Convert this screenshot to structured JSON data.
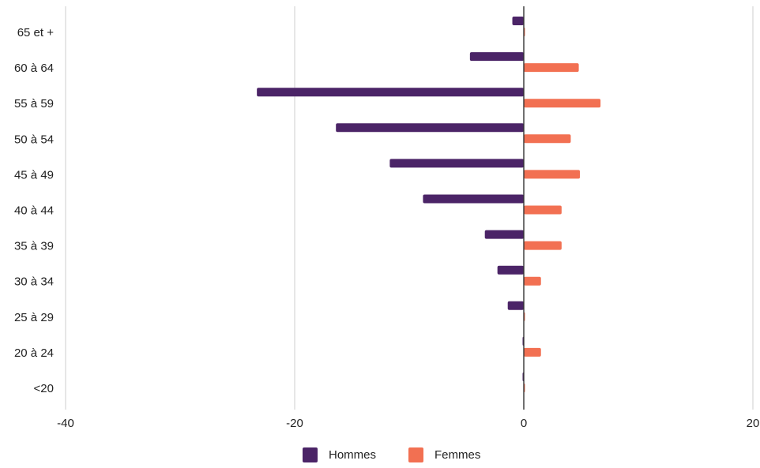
{
  "chart_data": {
    "type": "bar",
    "orientation": "horizontal",
    "categories": [
      "65 et +",
      "60 à 64",
      "55 à 59",
      "50 à 54",
      "45 à 49",
      "40 à 44",
      "35 à 39",
      "30 à 34",
      "25 à 29",
      "20 à 24",
      "<20"
    ],
    "series": [
      {
        "name": "Hommes",
        "color": "#4b2467",
        "values": [
          -1,
          -4.7,
          -23.3,
          -16.4,
          -11.7,
          -8.8,
          -3.4,
          -2.3,
          -1.4,
          0,
          0
        ]
      },
      {
        "name": "Femmes",
        "color": "#f27052",
        "values": [
          0,
          4.8,
          6.7,
          4.1,
          4.9,
          3.3,
          3.3,
          1.5,
          0,
          1.5,
          0
        ]
      }
    ],
    "x_ticks": [
      "-40",
      "-20",
      "0",
      "20"
    ],
    "xlim": [
      -40,
      20
    ],
    "grid": "vertical",
    "legend_position": "bottom"
  }
}
